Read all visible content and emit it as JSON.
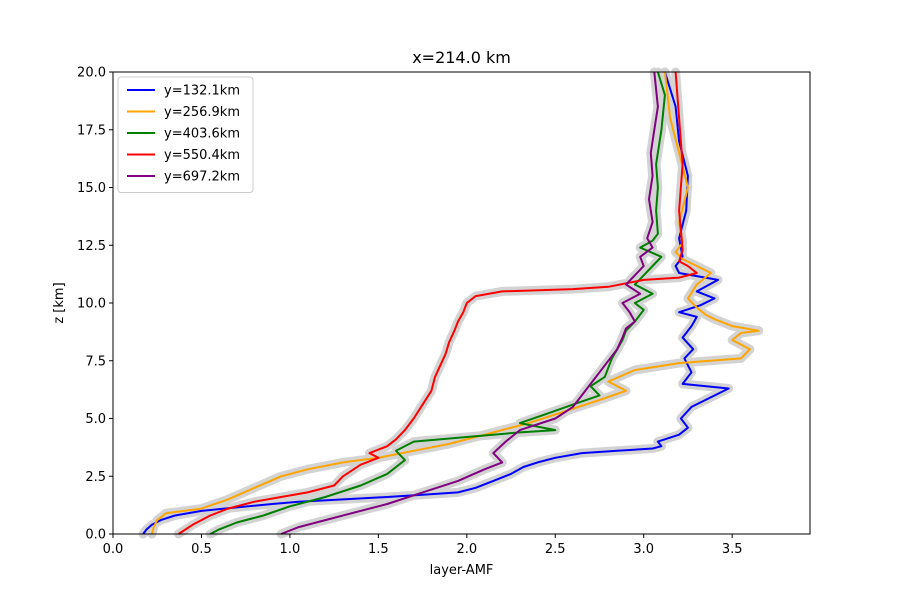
{
  "chart_data": {
    "type": "line",
    "title": "x=214.0 km",
    "xlabel": "layer-AMF",
    "ylabel": "z [km]",
    "xlim": [
      0.0,
      3.94
    ],
    "ylim": [
      0.0,
      20.0
    ],
    "xticks": [
      "0.0",
      "0.5",
      "1.0",
      "1.5",
      "2.0",
      "2.5",
      "3.0",
      "3.5"
    ],
    "xtick_values": [
      0.0,
      0.5,
      1.0,
      1.5,
      2.0,
      2.5,
      3.0,
      3.5
    ],
    "yticks": [
      "0.0",
      "2.5",
      "5.0",
      "7.5",
      "10.0",
      "12.5",
      "15.0",
      "17.5",
      "20.0"
    ],
    "ytick_values": [
      0.0,
      2.5,
      5.0,
      7.5,
      10.0,
      12.5,
      15.0,
      17.5,
      20.0
    ],
    "grid": false,
    "legend_position": "top-left",
    "band_color": "#d3d3d3",
    "series": [
      {
        "name": "y=132.1km",
        "color": "#0000ff",
        "x": [
          0.17,
          0.19,
          0.22,
          0.27,
          0.35,
          0.5,
          0.7,
          0.9,
          1.05,
          1.3,
          1.55,
          1.75,
          1.95,
          2.05,
          2.15,
          2.25,
          2.32,
          2.4,
          2.5,
          2.65,
          2.85,
          3.05,
          3.1,
          3.08,
          3.2,
          3.25,
          3.21,
          3.27,
          3.48,
          3.22,
          3.27,
          3.23,
          3.28,
          3.22,
          3.27,
          3.3,
          3.2,
          3.32,
          3.4,
          3.3,
          3.42,
          3.2,
          3.18,
          3.22,
          3.2,
          3.24,
          3.25,
          3.2,
          3.18,
          3.12
        ],
        "y": [
          0.0,
          0.2,
          0.4,
          0.6,
          0.8,
          1.0,
          1.15,
          1.3,
          1.4,
          1.5,
          1.6,
          1.7,
          1.8,
          2.0,
          2.3,
          2.6,
          2.9,
          3.1,
          3.3,
          3.5,
          3.6,
          3.7,
          3.8,
          4.0,
          4.3,
          4.6,
          5.0,
          5.5,
          6.3,
          6.5,
          7.0,
          7.6,
          8.0,
          8.5,
          9.0,
          9.4,
          9.6,
          9.9,
          10.2,
          10.5,
          11.0,
          11.3,
          11.6,
          12.0,
          12.8,
          14.0,
          15.5,
          17.0,
          18.5,
          20.0
        ]
      },
      {
        "name": "y=256.9km",
        "color": "#ffa500",
        "x": [
          0.22,
          0.23,
          0.25,
          0.3,
          0.4,
          0.5,
          0.65,
          0.8,
          0.95,
          1.1,
          1.3,
          1.5,
          1.7,
          1.9,
          2.1,
          2.35,
          2.55,
          2.75,
          2.9,
          2.8,
          2.95,
          3.2,
          3.55,
          3.6,
          3.5,
          3.55,
          3.65,
          3.5,
          3.4,
          3.35,
          3.3,
          3.25,
          3.3,
          3.38,
          3.3,
          3.22,
          3.18,
          3.22,
          3.2,
          3.25,
          3.2,
          3.15,
          3.12
        ],
        "y": [
          0.0,
          0.3,
          0.6,
          0.9,
          1.0,
          1.1,
          1.5,
          2.0,
          2.5,
          2.8,
          3.1,
          3.3,
          3.6,
          3.9,
          4.3,
          4.8,
          5.3,
          5.8,
          6.2,
          6.6,
          7.1,
          7.4,
          7.6,
          8.0,
          8.4,
          8.7,
          8.8,
          9.0,
          9.3,
          9.5,
          9.8,
          10.2,
          10.8,
          11.3,
          11.6,
          11.9,
          12.2,
          12.6,
          13.5,
          15.0,
          16.5,
          18.0,
          20.0
        ]
      },
      {
        "name": "y=403.6km",
        "color": "#008000",
        "x": [
          0.55,
          0.6,
          0.7,
          0.85,
          1.0,
          1.2,
          1.4,
          1.55,
          1.65,
          1.6,
          1.7,
          2.0,
          2.3,
          2.5,
          2.3,
          2.45,
          2.6,
          2.75,
          2.7,
          2.78,
          2.8,
          2.82,
          2.85,
          2.88,
          2.9,
          2.95,
          3.0,
          2.95,
          3.05,
          2.95,
          3.0,
          3.05,
          3.1,
          2.98,
          3.05,
          3.08,
          3.07,
          3.08,
          3.07,
          3.1,
          3.12,
          3.08
        ],
        "y": [
          0.0,
          0.2,
          0.5,
          0.8,
          1.2,
          1.6,
          2.1,
          2.6,
          3.2,
          3.6,
          4.0,
          4.2,
          4.4,
          4.5,
          4.8,
          5.2,
          5.6,
          6.0,
          6.4,
          6.8,
          7.2,
          7.6,
          8.0,
          8.4,
          8.8,
          9.2,
          9.7,
          10.0,
          10.4,
          10.8,
          11.2,
          11.6,
          12.0,
          12.4,
          12.7,
          13.0,
          14.0,
          15.0,
          16.0,
          17.5,
          19.0,
          20.0
        ]
      },
      {
        "name": "y=550.4km",
        "color": "#ff0000",
        "x": [
          0.37,
          0.45,
          0.55,
          0.65,
          0.8,
          0.95,
          1.1,
          1.25,
          1.3,
          1.4,
          1.5,
          1.45,
          1.55,
          1.6,
          1.65,
          1.7,
          1.75,
          1.8,
          1.82,
          1.85,
          1.88,
          1.9,
          1.93,
          1.95,
          1.98,
          2.0,
          2.05,
          2.2,
          2.6,
          2.8,
          3.0,
          3.2,
          3.3,
          3.25,
          3.2,
          3.22,
          3.2,
          3.22,
          3.2,
          3.18
        ],
        "y": [
          0.0,
          0.4,
          0.8,
          1.1,
          1.4,
          1.6,
          1.8,
          2.1,
          2.5,
          3.0,
          3.3,
          3.5,
          3.8,
          4.1,
          4.5,
          5.0,
          5.6,
          6.2,
          6.8,
          7.3,
          7.8,
          8.3,
          8.8,
          9.2,
          9.6,
          10.0,
          10.3,
          10.5,
          10.6,
          10.7,
          11.0,
          11.1,
          11.3,
          11.6,
          11.8,
          12.3,
          14.0,
          16.0,
          18.0,
          20.0
        ]
      },
      {
        "name": "y=697.2km",
        "color": "#800080",
        "x": [
          0.95,
          1.05,
          1.2,
          1.35,
          1.55,
          1.75,
          1.95,
          2.1,
          2.2,
          2.15,
          2.22,
          2.3,
          2.5,
          2.6,
          2.65,
          2.7,
          2.75,
          2.8,
          2.85,
          2.88,
          2.9,
          2.95,
          2.92,
          2.88,
          2.98,
          2.9,
          2.95,
          3.0,
          2.98,
          3.05,
          3.02,
          3.05,
          3.03,
          3.05,
          3.04,
          3.06,
          3.08,
          3.06
        ],
        "y": [
          0.0,
          0.3,
          0.6,
          0.9,
          1.3,
          1.8,
          2.3,
          2.8,
          3.1,
          3.5,
          4.0,
          4.5,
          5.0,
          5.5,
          6.0,
          6.5,
          7.0,
          7.5,
          8.0,
          8.5,
          8.9,
          9.2,
          9.6,
          10.0,
          10.4,
          10.8,
          11.2,
          11.6,
          12.0,
          12.4,
          12.8,
          13.5,
          14.5,
          15.5,
          16.5,
          17.5,
          18.5,
          20.0
        ]
      }
    ]
  }
}
